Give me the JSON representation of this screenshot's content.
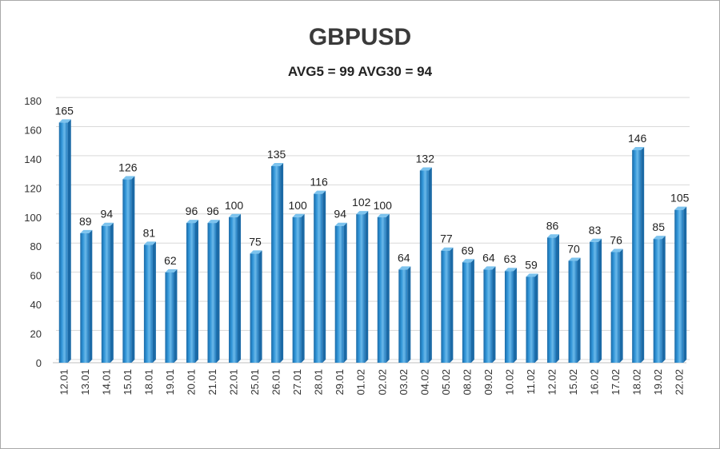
{
  "chart_data": {
    "type": "bar",
    "title": "GBPUSD",
    "subtitle": "AVG5 = 99 AVG30 = 94",
    "categories": [
      "12.01",
      "13.01",
      "14.01",
      "15.01",
      "18.01",
      "19.01",
      "20.01",
      "21.01",
      "22.01",
      "25.01",
      "26.01",
      "27.01",
      "28.01",
      "29.01",
      "01.02",
      "02.02",
      "03.02",
      "04.02",
      "05.02",
      "08.02",
      "09.02",
      "10.02",
      "11.02",
      "12.02",
      "15.02",
      "16.02",
      "17.02",
      "18.02",
      "19.02",
      "22.02"
    ],
    "values": [
      165,
      89,
      94,
      126,
      81,
      62,
      96,
      96,
      100,
      75,
      135,
      100,
      116,
      94,
      102,
      100,
      64,
      132,
      77,
      69,
      64,
      63,
      59,
      86,
      70,
      83,
      76,
      146,
      85,
      105
    ],
    "yticks": [
      0,
      20,
      40,
      60,
      80,
      100,
      120,
      140,
      160,
      180
    ],
    "ylim": [
      0,
      180
    ],
    "grid": true,
    "legend": "none",
    "bar_color": "#2f93d6",
    "bar_dark_color": "#1b6aa6",
    "bar_light_color": "#7cc3ee"
  }
}
